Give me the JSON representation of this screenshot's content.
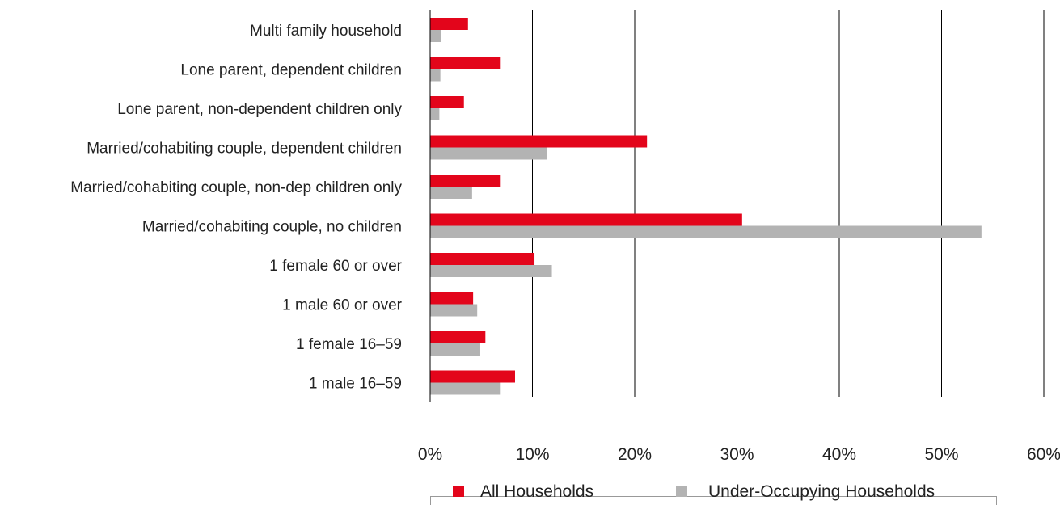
{
  "chart_data": {
    "type": "bar",
    "orientation": "horizontal",
    "categories": [
      "Multi family household",
      "Lone parent, dependent children",
      "Lone parent, non-dependent children only",
      "Married/cohabiting couple, dependent children",
      "Married/cohabiting couple, non-dep children only",
      "Married/cohabiting couple, no children",
      "1 female 60 or over",
      "1 male 60 or over",
      "1 female 16–59",
      "1 male 16–59"
    ],
    "series": [
      {
        "name": "All Households",
        "color": "#e3051b",
        "values": [
          3.7,
          6.9,
          3.3,
          21.2,
          6.9,
          30.5,
          10.2,
          4.2,
          5.4,
          8.3
        ]
      },
      {
        "name": "Under-Occupying Households",
        "color": "#b3b3b3",
        "values": [
          1.1,
          1.0,
          0.9,
          11.4,
          4.1,
          53.9,
          11.9,
          4.6,
          4.9,
          6.9
        ]
      }
    ],
    "xlim": [
      0,
      60
    ],
    "xticks": [
      "0%",
      "10%",
      "20%",
      "30%",
      "40%",
      "50%",
      "60%"
    ],
    "xtick_values": [
      0,
      10,
      20,
      30,
      40,
      50,
      60
    ],
    "title": "",
    "xlabel": "",
    "ylabel": "",
    "grid": "vertical",
    "legend_position": "bottom"
  }
}
